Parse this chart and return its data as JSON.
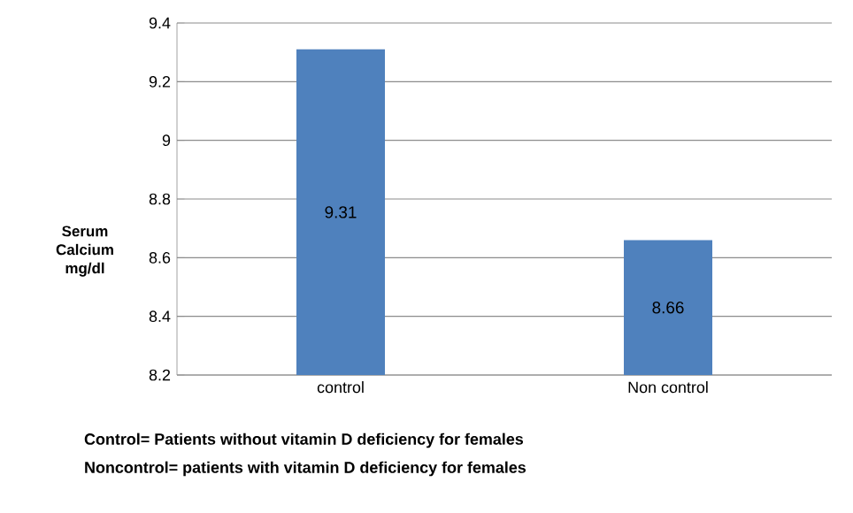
{
  "chart_data": {
    "type": "bar",
    "ylabel": "**Serum Calcium mg/dl**",
    "categories": [
      "control",
      "Non control"
    ],
    "values": [
      9.31,
      8.66
    ],
    "color": "#4f81bd",
    "value_labels": [
      "9.31",
      "8.66"
    ],
    "ylim": [
      8.2,
      9.4
    ],
    "yticks": [
      8.2,
      8.4,
      8.6,
      8.8,
      9,
      9.2,
      9.4
    ],
    "grid": "y",
    "annotations": [
      "**Control= Patients without vitamin D deficiency for females**",
      "**Noncontrol= patients with vitamin D deficiency for females**"
    ]
  }
}
